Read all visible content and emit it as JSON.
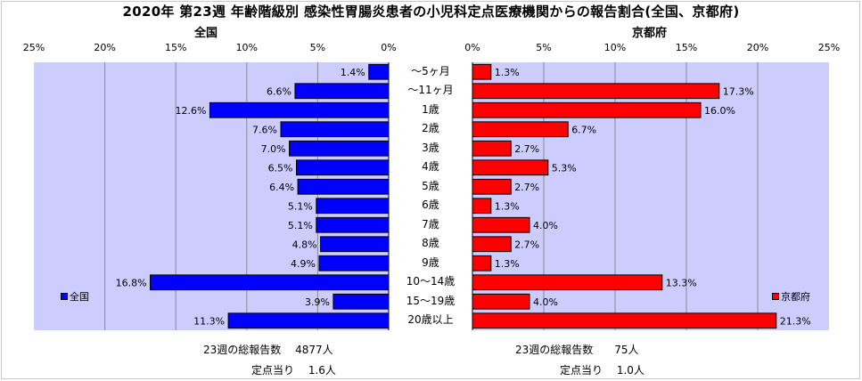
{
  "chart_data": {
    "type": "bar",
    "title": "2020年 第23週 年齢階級別 感染性胃腸炎患者の小児科定点医療機関からの報告割合(全国、京都府)",
    "categories": [
      "～5ヶ月",
      "～11ヶ月",
      "1歳",
      "2歳",
      "3歳",
      "4歳",
      "5歳",
      "6歳",
      "7歳",
      "8歳",
      "9歳",
      "10～14歳",
      "15～19歳",
      "20歳以上"
    ],
    "xlim": [
      0,
      25
    ],
    "tick_labels": [
      "25%",
      "20%",
      "15%",
      "10%",
      "5%",
      "0%"
    ],
    "tick_labels_right": [
      "0%",
      "5%",
      "10%",
      "15%",
      "20%",
      "25%"
    ],
    "grid": true,
    "series": [
      {
        "name": "全国",
        "panel_title": "全国",
        "color": "#0000ff",
        "values": [
          1.4,
          6.6,
          12.6,
          7.6,
          7.0,
          6.5,
          6.4,
          5.1,
          5.1,
          4.8,
          4.9,
          16.8,
          3.9,
          11.3
        ],
        "value_labels": [
          "1.4%",
          "6.6%",
          "12.6%",
          "7.6%",
          "7.0%",
          "6.5%",
          "6.4%",
          "5.1%",
          "5.1%",
          "4.8%",
          "4.9%",
          "16.8%",
          "3.9%",
          "11.3%"
        ]
      },
      {
        "name": "京都府",
        "panel_title": "京都府",
        "color": "#ff0000",
        "values": [
          1.3,
          17.3,
          16.0,
          6.7,
          2.7,
          5.3,
          2.7,
          1.3,
          4.0,
          2.7,
          1.3,
          13.3,
          4.0,
          21.3
        ],
        "value_labels": [
          "1.3%",
          "17.3%",
          "16.0%",
          "6.7%",
          "2.7%",
          "5.3%",
          "2.7%",
          "1.3%",
          "4.0%",
          "2.7%",
          "1.3%",
          "13.3%",
          "4.0%",
          "21.3%"
        ]
      }
    ],
    "legend_placement": [
      "left-bottom",
      "right-bottom"
    ]
  },
  "footer": {
    "left_reports": "23週の総報告数　 4877人",
    "left_per_site": "定点当り　 1.6人",
    "right_reports": "23週の総報告数　　75人",
    "right_per_site": "定点当り　 1.0人"
  }
}
